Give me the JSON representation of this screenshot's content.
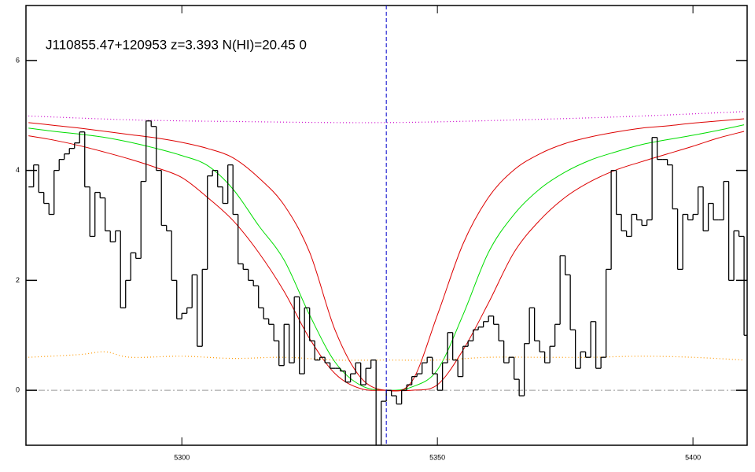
{
  "chart_data": {
    "type": "spectrum",
    "title": "J110855.47+120953 z=3.393 N(HI)=20.45 0",
    "xlim": [
      5269.5,
      5410.6
    ],
    "ylim": [
      -1,
      7
    ],
    "xticks": [
      5300,
      5350,
      5400
    ],
    "yticks": [
      0,
      2,
      4,
      6
    ],
    "marker_x": 5340,
    "marker_color": "#0000cc",
    "zero_line": 0,
    "zero_color": "#999999",
    "flux": {
      "color": "#000000",
      "bins": [
        5270,
        5271,
        5272,
        5273,
        5274,
        5275,
        5276,
        5277,
        5278,
        5279,
        5280,
        5281,
        5282,
        5283,
        5284,
        5285,
        5286,
        5287,
        5288,
        5289,
        5290,
        5291,
        5292,
        5293,
        5294,
        5295,
        5296,
        5297,
        5298,
        5299,
        5300,
        5301,
        5302,
        5303,
        5304,
        5305,
        5306,
        5307,
        5308,
        5309,
        5310,
        5311,
        5312,
        5313,
        5314,
        5315,
        5316,
        5317,
        5318,
        5319,
        5320,
        5321,
        5322,
        5323,
        5324,
        5325,
        5326,
        5327,
        5328,
        5329,
        5330,
        5331,
        5332,
        5333,
        5334,
        5335,
        5336,
        5337,
        5338,
        5339,
        5340,
        5341,
        5342,
        5343,
        5344,
        5345,
        5346,
        5347,
        5348,
        5349,
        5350,
        5351,
        5352,
        5353,
        5354,
        5355,
        5356,
        5357,
        5358,
        5359,
        5360,
        5361,
        5362,
        5363,
        5364,
        5365,
        5366,
        5367,
        5368,
        5369,
        5370,
        5371,
        5372,
        5373,
        5374,
        5375,
        5376,
        5377,
        5378,
        5379,
        5380,
        5381,
        5382,
        5383,
        5384,
        5385,
        5386,
        5387,
        5388,
        5389,
        5390,
        5391,
        5392,
        5393,
        5394,
        5395,
        5396,
        5397,
        5398,
        5399,
        5400,
        5401,
        5402,
        5403,
        5404,
        5405,
        5406,
        5407,
        5408,
        5409,
        5410,
        5411
      ],
      "values": [
        3.7,
        4.1,
        3.6,
        3.4,
        3.2,
        4.0,
        4.2,
        4.3,
        4.4,
        4.5,
        4.7,
        3.7,
        2.8,
        3.6,
        3.5,
        2.9,
        2.7,
        2.9,
        1.5,
        2.0,
        2.5,
        2.4,
        3.8,
        4.9,
        4.8,
        4.0,
        3.0,
        2.9,
        2.0,
        1.3,
        1.4,
        1.5,
        2.1,
        0.8,
        2.2,
        3.9,
        4.0,
        3.7,
        3.4,
        4.1,
        3.2,
        2.3,
        2.2,
        2.0,
        1.9,
        1.5,
        1.3,
        1.2,
        0.9,
        0.45,
        1.2,
        0.5,
        1.7,
        0.3,
        1.5,
        0.9,
        0.55,
        0.6,
        0.5,
        0.4,
        0.4,
        0.35,
        0.15,
        0.3,
        0.5,
        0.1,
        0.4,
        0.55,
        -1.0,
        -0.2,
        0.0,
        -0.1,
        -0.25,
        0.0,
        0.1,
        0.25,
        0.3,
        0.5,
        0.6,
        0.3,
        0.0,
        0.5,
        1.05,
        0.55,
        0.25,
        0.8,
        0.9,
        1.1,
        1.15,
        1.25,
        1.35,
        1.2,
        0.9,
        0.5,
        0.6,
        0.2,
        -0.1,
        0.85,
        1.5,
        0.9,
        0.7,
        0.5,
        0.8,
        1.2,
        2.45,
        2.1,
        1.1,
        0.4,
        0.7,
        0.6,
        1.25,
        0.4,
        0.6,
        2.2,
        4.0,
        3.2,
        2.9,
        2.8,
        3.2,
        3.1,
        3.0,
        3.1,
        4.6,
        4.2,
        4.2,
        4.1,
        3.3,
        2.2,
        3.2,
        3.1,
        3.2,
        3.7,
        2.9,
        3.4,
        3.1,
        3.1,
        3.8,
        2.0,
        2.9,
        2.8,
        1.0
      ]
    },
    "series": [
      {
        "color": "#00dd00",
        "style": "solid",
        "x": [
          5270,
          5275,
          5280,
          5285,
          5290,
          5295,
          5300,
          5305,
          5310,
          5315,
          5320,
          5325,
          5330,
          5335,
          5340,
          5345,
          5350,
          5355,
          5360,
          5365,
          5370,
          5375,
          5380,
          5385,
          5390,
          5395,
          5400,
          5405,
          5410
        ],
        "values": [
          4.77,
          4.71,
          4.66,
          4.6,
          4.51,
          4.4,
          4.27,
          4.09,
          3.66,
          3.0,
          2.37,
          1.37,
          0.51,
          0.09,
          0,
          0.06,
          0.37,
          1.37,
          2.51,
          3.2,
          3.66,
          3.97,
          4.19,
          4.34,
          4.47,
          4.56,
          4.64,
          4.73,
          4.83
        ]
      },
      {
        "color": "#dd0000",
        "style": "solid",
        "x": [
          5270,
          5275,
          5280,
          5285,
          5290,
          5295,
          5300,
          5305,
          5310,
          5315,
          5320,
          5325,
          5330,
          5335,
          5340,
          5345,
          5350,
          5355,
          5360,
          5365,
          5370,
          5375,
          5380,
          5385,
          5390,
          5395,
          5400,
          5405,
          5410
        ],
        "values": [
          4.87,
          4.82,
          4.77,
          4.71,
          4.65,
          4.59,
          4.51,
          4.4,
          4.23,
          3.87,
          3.37,
          2.51,
          1.09,
          0.23,
          0,
          0.16,
          1.37,
          2.66,
          3.51,
          4.01,
          4.3,
          4.49,
          4.61,
          4.7,
          4.77,
          4.81,
          4.86,
          4.9,
          4.94
        ]
      },
      {
        "color": "#dd0000",
        "style": "solid",
        "x": [
          5270,
          5275,
          5280,
          5285,
          5290,
          5295,
          5300,
          5305,
          5310,
          5315,
          5320,
          5325,
          5330,
          5335,
          5340,
          5345,
          5350,
          5355,
          5360,
          5365,
          5370,
          5375,
          5380,
          5385,
          5390,
          5395,
          5400,
          5405,
          5410
        ],
        "values": [
          4.63,
          4.55,
          4.45,
          4.33,
          4.2,
          4.05,
          3.87,
          3.51,
          3.09,
          2.51,
          1.8,
          0.94,
          0.3,
          0.03,
          0,
          0,
          0.1,
          0.73,
          1.59,
          2.51,
          3.09,
          3.51,
          3.8,
          4.01,
          4.16,
          4.3,
          4.44,
          4.59,
          4.71
        ]
      },
      {
        "color": "#cc00cc",
        "style": "dotted",
        "x": [
          5270,
          5290,
          5310,
          5340,
          5370,
          5390,
          5410
        ],
        "values": [
          4.99,
          4.92,
          4.89,
          4.87,
          4.93,
          4.99,
          5.07
        ]
      },
      {
        "color": "#ff9900",
        "style": "dotted",
        "x": [
          5270,
          5280,
          5285,
          5290,
          5300,
          5310,
          5320,
          5330,
          5340,
          5350,
          5360,
          5370,
          5380,
          5390,
          5400,
          5410
        ],
        "values": [
          0.6,
          0.65,
          0.7,
          0.6,
          0.62,
          0.58,
          0.6,
          0.55,
          0.55,
          0.55,
          0.6,
          0.6,
          0.6,
          0.62,
          0.6,
          0.55
        ]
      }
    ]
  }
}
